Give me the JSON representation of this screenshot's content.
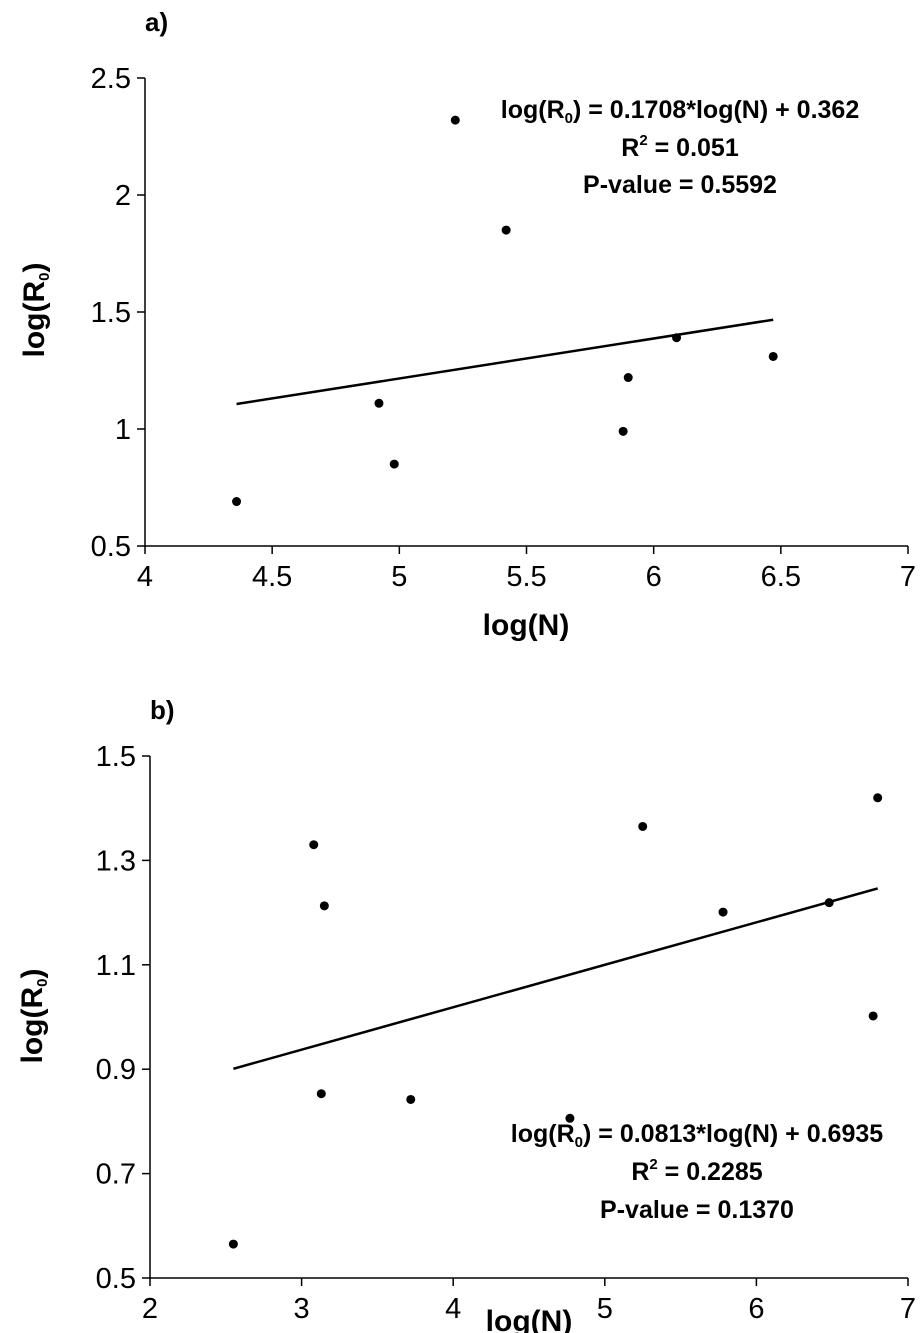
{
  "chart_data": [
    {
      "type": "scatter",
      "panel_label": "a)",
      "xlabel": "log(N)",
      "ylabel": {
        "base": "log(R",
        "subscript": "0",
        "close": ")"
      },
      "xlim": [
        4,
        7
      ],
      "ylim": [
        0.5,
        2.5
      ],
      "xticks": [
        4,
        4.5,
        5,
        5.5,
        6,
        6.5,
        7
      ],
      "xtick_labels": [
        "4",
        "4.5",
        "5",
        "5.5",
        "6",
        "6.5",
        "7"
      ],
      "yticks": [
        0.5,
        1,
        1.5,
        2,
        2.5
      ],
      "ytick_labels": [
        "0.5",
        "1",
        "1.5",
        "2",
        "2.5"
      ],
      "points": [
        {
          "x": 4.36,
          "y": 0.69
        },
        {
          "x": 4.92,
          "y": 1.11
        },
        {
          "x": 4.98,
          "y": 0.85
        },
        {
          "x": 5.22,
          "y": 2.32
        },
        {
          "x": 5.42,
          "y": 1.85
        },
        {
          "x": 5.88,
          "y": 0.99
        },
        {
          "x": 5.9,
          "y": 1.22
        },
        {
          "x": 6.09,
          "y": 1.39
        },
        {
          "x": 6.47,
          "y": 1.31
        }
      ],
      "trendline": {
        "slope": 0.1708,
        "intercept": 0.362,
        "x_range": [
          4.36,
          6.47
        ]
      },
      "annotation": {
        "equation": {
          "prefix": "log(R",
          "subscript": "0",
          "rest": ") = 0.1708*log(N) + 0.362"
        },
        "r2": {
          "base": "R",
          "superscript": "2",
          "rest": " = 0.051"
        },
        "pvalue": "P-value = 0.5592"
      },
      "grid": false,
      "legend": "none"
    },
    {
      "type": "scatter",
      "panel_label": "b)",
      "xlabel": "log(N)",
      "ylabel": {
        "base": "log(R",
        "subscript": "0",
        "close": ")"
      },
      "xlim": [
        2,
        7
      ],
      "ylim": [
        0.5,
        1.5
      ],
      "xticks": [
        2,
        3,
        4,
        5,
        6,
        7
      ],
      "xtick_labels": [
        "2",
        "3",
        "4",
        "5",
        "6",
        "7"
      ],
      "yticks": [
        0.5,
        0.7,
        0.9,
        1.1,
        1.3,
        1.5
      ],
      "ytick_labels": [
        "0.5",
        "0.7",
        "0.9",
        "1.1",
        "1.3",
        "1.5"
      ],
      "points": [
        {
          "x": 2.55,
          "y": 0.565
        },
        {
          "x": 3.08,
          "y": 1.33
        },
        {
          "x": 3.15,
          "y": 1.213
        },
        {
          "x": 3.13,
          "y": 0.853
        },
        {
          "x": 3.72,
          "y": 0.842
        },
        {
          "x": 4.77,
          "y": 0.806
        },
        {
          "x": 5.25,
          "y": 1.365
        },
        {
          "x": 5.78,
          "y": 1.201
        },
        {
          "x": 6.48,
          "y": 1.219
        },
        {
          "x": 6.77,
          "y": 1.002
        },
        {
          "x": 6.8,
          "y": 1.42
        }
      ],
      "trendline": {
        "slope": 0.0813,
        "intercept": 0.6935,
        "x_range": [
          2.55,
          6.8
        ]
      },
      "annotation": {
        "equation": {
          "prefix": "log(R",
          "subscript": "0",
          "rest": ") = 0.0813*log(N) + 0.6935"
        },
        "r2": {
          "base": "R",
          "superscript": "2",
          "rest": " = 0.2285"
        },
        "pvalue": "P-value = 0.1370"
      },
      "grid": false,
      "legend": "none"
    }
  ]
}
